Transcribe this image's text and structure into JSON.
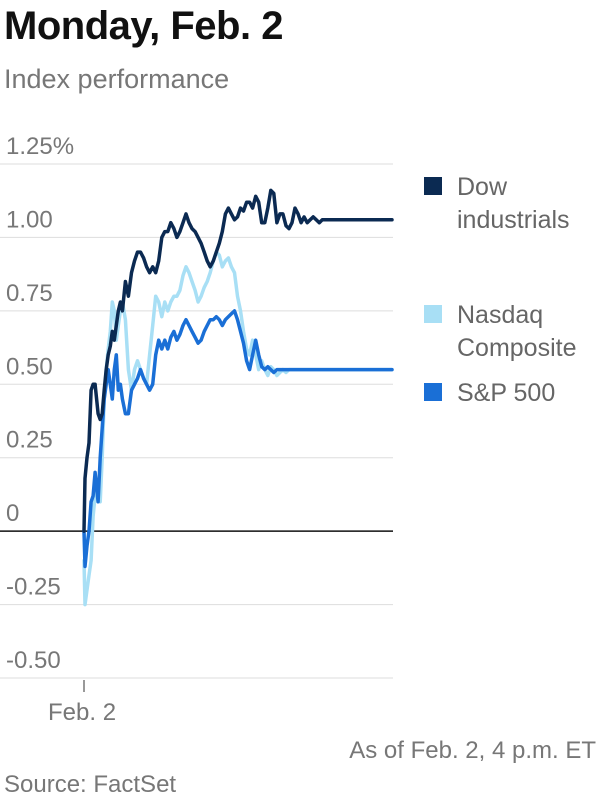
{
  "header": {
    "title": "Monday, Feb. 2",
    "subtitle": "Index performance"
  },
  "footer": {
    "as_of": "As of Feb. 2, 4 p.m. ET",
    "source": "Source: FactSet"
  },
  "chart_data": {
    "type": "line",
    "title": "",
    "xlabel": "",
    "ylabel": "",
    "ylim": [
      -0.5,
      1.25
    ],
    "xlim": [
      -3,
      309
    ],
    "y_ticks": [
      {
        "value": 1.25,
        "label": "1.25%"
      },
      {
        "value": 1.0,
        "label": "1.00"
      },
      {
        "value": 0.75,
        "label": "0.75"
      },
      {
        "value": 0.5,
        "label": "0.50"
      },
      {
        "value": 0.25,
        "label": "0.25"
      },
      {
        "value": 0,
        "label": "0"
      },
      {
        "value": -0.25,
        "label": "-0.25"
      },
      {
        "value": -0.5,
        "label": "-0.50"
      }
    ],
    "x_ticks": [
      {
        "value": 0,
        "label": "Feb. 2"
      }
    ],
    "grid": true,
    "legend_position": "right",
    "series": [
      {
        "name": "Dow industrials",
        "color": "#0b2a52",
        "x": [
          0,
          1,
          3,
          5,
          7,
          9,
          11,
          14,
          16,
          18,
          20,
          22,
          24,
          26,
          28,
          30,
          32,
          34,
          36,
          38,
          41,
          44,
          47,
          50,
          53,
          56,
          59,
          62,
          65,
          68,
          71,
          74,
          77,
          80,
          83,
          86,
          89,
          92,
          95,
          98,
          101,
          104,
          107,
          110,
          113,
          116,
          119,
          122,
          125,
          128,
          131,
          134,
          137,
          140,
          143,
          146,
          149,
          152,
          155,
          158,
          161,
          164,
          167,
          170,
          173,
          176,
          179,
          182,
          185,
          188,
          191,
          194,
          197,
          200,
          203,
          206,
          209,
          212,
          215,
          218,
          221,
          224,
          227,
          230,
          233,
          236,
          239,
          242,
          245,
          248,
          251,
          254,
          257,
          260,
          263,
          266,
          269,
          272,
          275,
          278,
          281,
          284,
          287,
          290,
          293,
          296,
          299,
          302,
          305
        ],
        "y": [
          0.0,
          0.18,
          0.25,
          0.3,
          0.48,
          0.5,
          0.5,
          0.4,
          0.38,
          0.4,
          0.48,
          0.55,
          0.6,
          0.63,
          0.68,
          0.65,
          0.7,
          0.75,
          0.78,
          0.75,
          0.85,
          0.8,
          0.88,
          0.92,
          0.95,
          0.95,
          0.93,
          0.9,
          0.88,
          0.9,
          0.88,
          0.92,
          1.0,
          1.02,
          1.02,
          1.05,
          1.03,
          1.0,
          1.02,
          1.05,
          1.08,
          1.05,
          1.03,
          1.02,
          1.0,
          0.98,
          0.95,
          0.92,
          0.9,
          0.92,
          0.95,
          0.98,
          1.02,
          1.08,
          1.1,
          1.08,
          1.06,
          1.07,
          1.1,
          1.09,
          1.12,
          1.12,
          1.1,
          1.14,
          1.12,
          1.05,
          1.05,
          1.1,
          1.16,
          1.15,
          1.05,
          1.08,
          1.08,
          1.04,
          1.03,
          1.05,
          1.1,
          1.08,
          1.05,
          1.07,
          1.05,
          1.06,
          1.07,
          1.06,
          1.05,
          1.06,
          1.06,
          1.06,
          1.06,
          1.06,
          1.06,
          1.06,
          1.06,
          1.06,
          1.06,
          1.06,
          1.06,
          1.06,
          1.06,
          1.06,
          1.06,
          1.06,
          1.06,
          1.06,
          1.06,
          1.06,
          1.06,
          1.06,
          1.06
        ]
      },
      {
        "name": "Nasdaq Composite",
        "color": "#a8dff5",
        "x": [
          0,
          1,
          3,
          5,
          7,
          9,
          11,
          14,
          16,
          18,
          20,
          22,
          24,
          26,
          28,
          30,
          32,
          34,
          36,
          38,
          41,
          44,
          47,
          50,
          53,
          56,
          59,
          62,
          65,
          68,
          71,
          74,
          77,
          80,
          83,
          86,
          89,
          92,
          95,
          98,
          101,
          104,
          107,
          110,
          113,
          116,
          119,
          122,
          125,
          128,
          131,
          134,
          137,
          140,
          143,
          146,
          149,
          152,
          155,
          158,
          161,
          164,
          167,
          170,
          173,
          176,
          179,
          182,
          185,
          188,
          191,
          194,
          197,
          200,
          203,
          206,
          209,
          212,
          215,
          218,
          221,
          224,
          227,
          230,
          233,
          236,
          239,
          242,
          245,
          248,
          251,
          254,
          257,
          260,
          263,
          266,
          269,
          272,
          275,
          278,
          281,
          284,
          287,
          290,
          293,
          296,
          299,
          302,
          305
        ],
        "y": [
          -0.1,
          -0.25,
          -0.2,
          -0.15,
          -0.1,
          0.05,
          0.12,
          0.15,
          0.1,
          0.25,
          0.45,
          0.55,
          0.62,
          0.68,
          0.78,
          0.75,
          0.65,
          0.7,
          0.75,
          0.78,
          0.72,
          0.55,
          0.48,
          0.55,
          0.58,
          0.55,
          0.52,
          0.5,
          0.6,
          0.7,
          0.8,
          0.78,
          0.73,
          0.78,
          0.75,
          0.78,
          0.8,
          0.8,
          0.82,
          0.87,
          0.9,
          0.88,
          0.85,
          0.82,
          0.78,
          0.8,
          0.83,
          0.85,
          0.88,
          0.92,
          0.95,
          0.94,
          0.9,
          0.92,
          0.93,
          0.9,
          0.88,
          0.8,
          0.75,
          0.68,
          0.62,
          0.6,
          0.65,
          0.6,
          0.55,
          0.58,
          0.55,
          0.53,
          0.56,
          0.55,
          0.53,
          0.54,
          0.55,
          0.54,
          0.55,
          0.55,
          0.55,
          0.55,
          0.55,
          0.55,
          0.55,
          0.55,
          0.55,
          0.55,
          0.55,
          0.55,
          0.55,
          0.55,
          0.55,
          0.55,
          0.55,
          0.55,
          0.55,
          0.55,
          0.55,
          0.55,
          0.55,
          0.55,
          0.55,
          0.55,
          0.55,
          0.55,
          0.55,
          0.55,
          0.55,
          0.55,
          0.55,
          0.55,
          0.55
        ]
      },
      {
        "name": "S&P 500",
        "color": "#1a6fd6",
        "x": [
          0,
          1,
          3,
          5,
          7,
          9,
          11,
          14,
          16,
          18,
          20,
          22,
          24,
          26,
          28,
          30,
          32,
          34,
          36,
          38,
          41,
          44,
          47,
          50,
          53,
          56,
          59,
          62,
          65,
          68,
          71,
          74,
          77,
          80,
          83,
          86,
          89,
          92,
          95,
          98,
          101,
          104,
          107,
          110,
          113,
          116,
          119,
          122,
          125,
          128,
          131,
          134,
          137,
          140,
          143,
          146,
          149,
          152,
          155,
          158,
          161,
          164,
          167,
          170,
          173,
          176,
          179,
          182,
          185,
          188,
          191,
          194,
          197,
          200,
          203,
          206,
          209,
          212,
          215,
          218,
          221,
          224,
          227,
          230,
          233,
          236,
          239,
          242,
          245,
          248,
          251,
          254,
          257,
          260,
          263,
          266,
          269,
          272,
          275,
          278,
          281,
          284,
          287,
          290,
          293,
          296,
          299,
          302,
          305
        ],
        "y": [
          0.0,
          -0.12,
          -0.05,
          0.0,
          0.1,
          0.12,
          0.2,
          0.1,
          0.25,
          0.35,
          0.45,
          0.5,
          0.55,
          0.5,
          0.45,
          0.55,
          0.6,
          0.48,
          0.5,
          0.45,
          0.4,
          0.4,
          0.48,
          0.5,
          0.52,
          0.55,
          0.52,
          0.5,
          0.48,
          0.5,
          0.6,
          0.65,
          0.62,
          0.65,
          0.62,
          0.66,
          0.68,
          0.65,
          0.67,
          0.7,
          0.72,
          0.7,
          0.68,
          0.66,
          0.64,
          0.65,
          0.68,
          0.7,
          0.72,
          0.72,
          0.73,
          0.72,
          0.7,
          0.72,
          0.73,
          0.74,
          0.75,
          0.72,
          0.68,
          0.64,
          0.58,
          0.55,
          0.6,
          0.65,
          0.6,
          0.56,
          0.55,
          0.56,
          0.55,
          0.54,
          0.55,
          0.55,
          0.55,
          0.55,
          0.55,
          0.55,
          0.55,
          0.55,
          0.55,
          0.55,
          0.55,
          0.55,
          0.55,
          0.55,
          0.55,
          0.55,
          0.55,
          0.55,
          0.55,
          0.55,
          0.55,
          0.55,
          0.55,
          0.55,
          0.55,
          0.55,
          0.55,
          0.55,
          0.55,
          0.55,
          0.55,
          0.55,
          0.55,
          0.55,
          0.55,
          0.55,
          0.55,
          0.55,
          0.55
        ]
      }
    ]
  }
}
